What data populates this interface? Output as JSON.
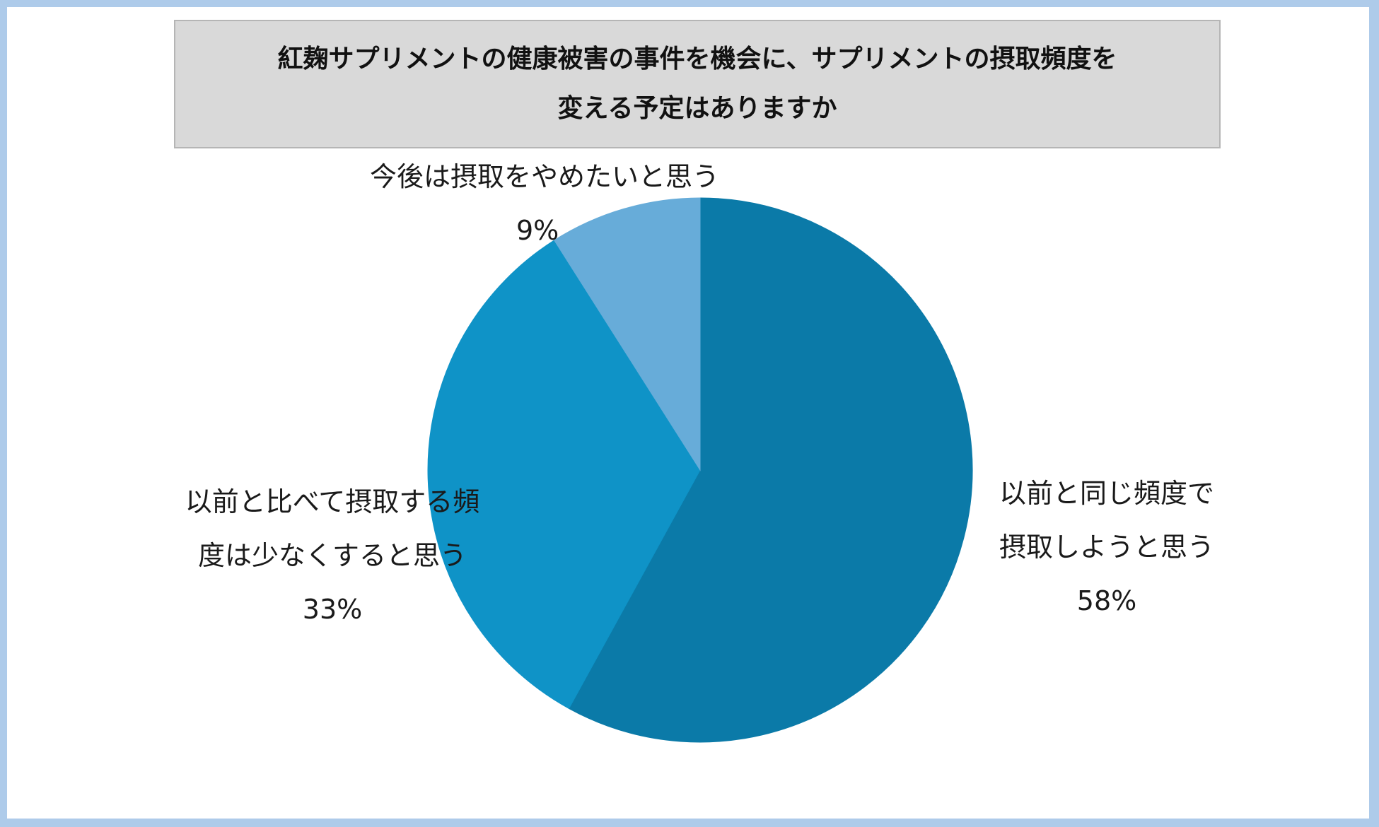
{
  "chart_data": {
    "type": "pie",
    "title": "紅麹サプリメントの健康被害の事件を機会に、サプリメントの摂取頻度を変える予定はありますか",
    "title_lines": [
      "紅麹サプリメントの健康被害の事件を機会に、サプリメントの摂取頻度を",
      "変える予定はありますか"
    ],
    "slices": [
      {
        "label": "以前と同じ頻度で摂取しようと思う",
        "label_lines": [
          "以前と同じ頻度で",
          "摂取しようと思う"
        ],
        "value": 58,
        "value_label": "58%",
        "color": "#0b7aa8"
      },
      {
        "label": "以前と比べて摂取する頻度は少なくすると思う",
        "label_lines": [
          "以前と比べて摂取する頻",
          "度は少なくすると思う"
        ],
        "value": 33,
        "value_label": "33%",
        "color": "#0f93c7"
      },
      {
        "label": "今後は摂取をやめたいと思う",
        "label_lines": [
          "今後は摂取をやめたいと思う"
        ],
        "value": 9,
        "value_label": "9%",
        "color": "#67acd9"
      }
    ],
    "start": "12 o'clock",
    "direction": "clockwise",
    "legend": "none"
  },
  "colors": {
    "frame": "#aecbea",
    "title_background": "#d9d9d9",
    "title_border": "#b5b5b5"
  }
}
